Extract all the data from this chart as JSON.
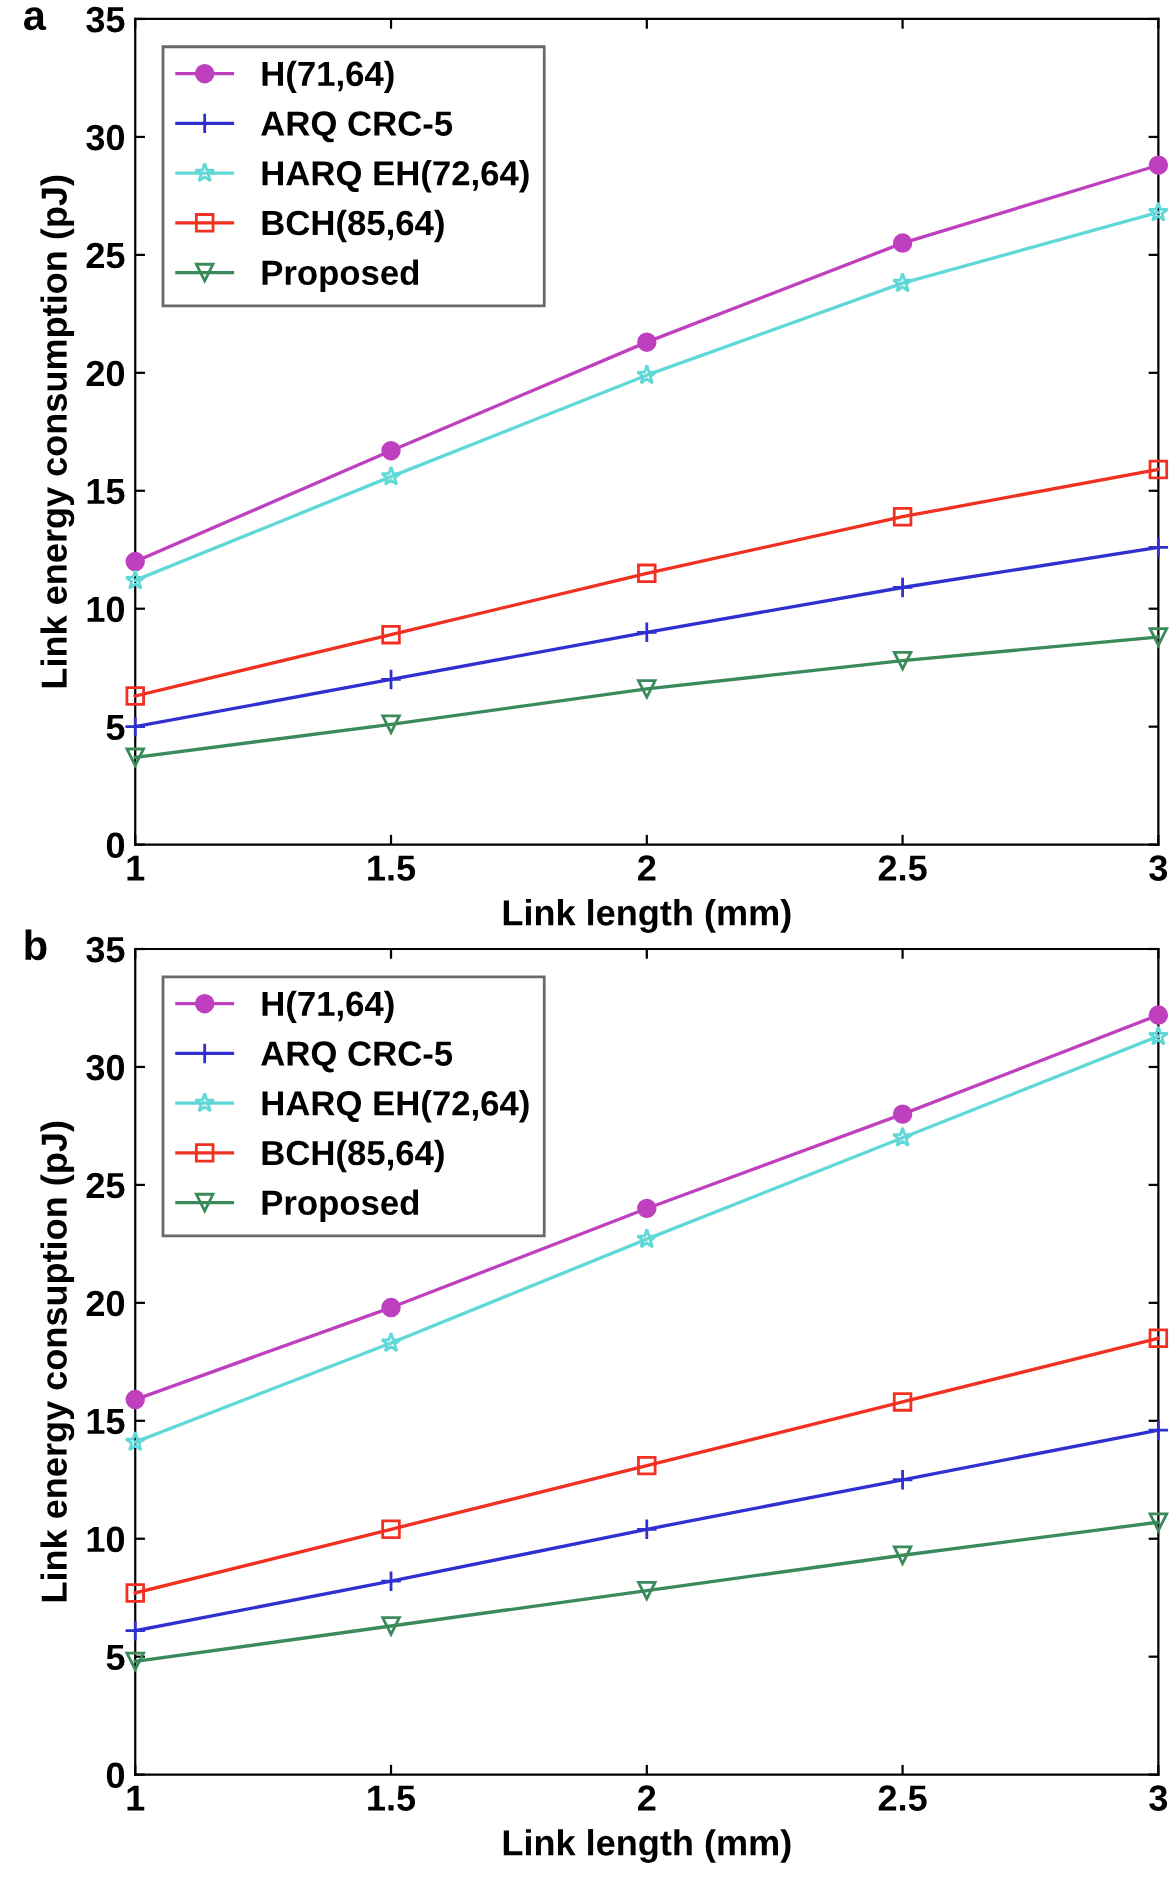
{
  "chart_data": [
    {
      "type": "line",
      "title": "a",
      "xlabel": "Link length (mm)",
      "ylabel": "Link energy consumption (pJ)",
      "x": [
        1,
        1.5,
        2,
        2.5,
        3
      ],
      "xlim": [
        1,
        3
      ],
      "xticks": [
        1,
        1.5,
        2,
        2.5,
        3
      ],
      "ylim": [
        0,
        35
      ],
      "yticks": [
        0,
        5,
        10,
        15,
        20,
        25,
        30,
        35
      ],
      "legend": "top left",
      "grid": false,
      "series": [
        {
          "name": "H(71,64)",
          "color": "#bf40bf",
          "marker": "circle",
          "values": [
            12,
            16.7,
            21.3,
            25.5,
            28.8
          ]
        },
        {
          "name": "ARQ CRC-5",
          "color": "#3030d0",
          "marker": "cross",
          "values": [
            5,
            7,
            9,
            10.9,
            12.6
          ]
        },
        {
          "name": "HARQ EH(72,64)",
          "color": "#60d8d8",
          "marker": "star",
          "values": [
            11.2,
            15.6,
            19.9,
            23.8,
            26.8
          ]
        },
        {
          "name": "BCH(85,64)",
          "color": "#f03020",
          "marker": "square",
          "values": [
            6.3,
            8.9,
            11.5,
            13.9,
            15.9
          ]
        },
        {
          "name": "Proposed",
          "color": "#3a8a5a",
          "marker": "triangle",
          "values": [
            3.7,
            5.1,
            6.6,
            7.8,
            8.8
          ]
        }
      ]
    },
    {
      "type": "line",
      "title": "b",
      "xlabel": "Link length (mm)",
      "ylabel": "Link energy consuption (pJ)",
      "x": [
        1,
        1.5,
        2,
        2.5,
        3
      ],
      "xlim": [
        1,
        3
      ],
      "xticks": [
        1,
        1.5,
        2,
        2.5,
        3
      ],
      "ylim": [
        0,
        35
      ],
      "yticks": [
        0,
        5,
        10,
        15,
        20,
        25,
        30,
        35
      ],
      "legend": "top left",
      "grid": false,
      "series": [
        {
          "name": "H(71,64)",
          "color": "#bf40bf",
          "marker": "circle",
          "values": [
            15.9,
            19.8,
            24,
            28,
            32.2
          ]
        },
        {
          "name": "ARQ CRC-5",
          "color": "#3030d0",
          "marker": "cross",
          "values": [
            6.1,
            8.2,
            10.4,
            12.5,
            14.6
          ]
        },
        {
          "name": "HARQ EH(72,64)",
          "color": "#60d8d8",
          "marker": "star",
          "values": [
            14.1,
            18.3,
            22.7,
            27,
            31.3
          ]
        },
        {
          "name": "BCH(85,64)",
          "color": "#f03020",
          "marker": "square",
          "values": [
            7.7,
            10.4,
            13.1,
            15.8,
            18.5
          ]
        },
        {
          "name": "Proposed",
          "color": "#3a8a5a",
          "marker": "triangle",
          "values": [
            4.8,
            6.3,
            7.8,
            9.3,
            10.7
          ]
        }
      ]
    }
  ]
}
